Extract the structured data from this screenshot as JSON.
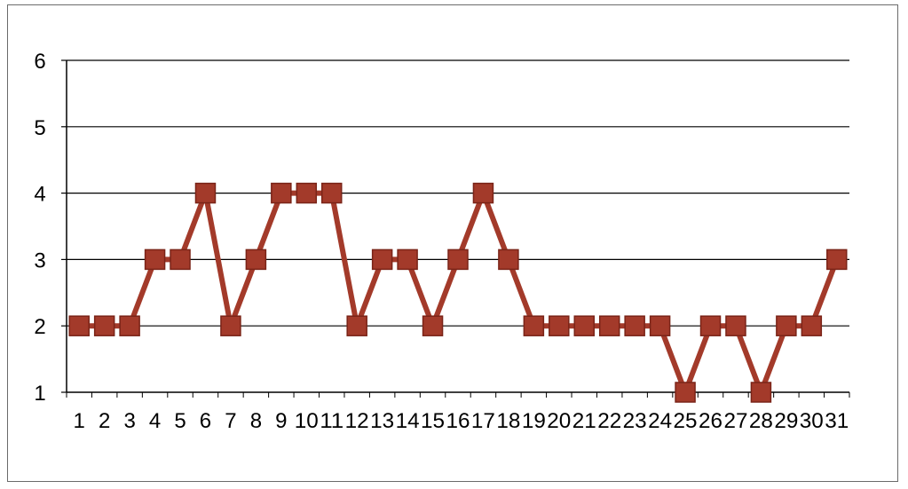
{
  "chart_data": {
    "type": "line",
    "title": "",
    "xlabel": "",
    "ylabel": "",
    "categories": [
      "1",
      "2",
      "3",
      "4",
      "5",
      "6",
      "7",
      "8",
      "9",
      "10",
      "11",
      "12",
      "13",
      "14",
      "15",
      "16",
      "17",
      "18",
      "19",
      "20",
      "21",
      "22",
      "23",
      "24",
      "25",
      "26",
      "27",
      "28",
      "29",
      "30",
      "31"
    ],
    "series": [
      {
        "values": [
          2,
          2,
          2,
          3,
          3,
          4,
          2,
          3,
          4,
          4,
          4,
          2,
          3,
          3,
          2,
          3,
          4,
          3,
          2,
          2,
          2,
          2,
          2,
          2,
          1,
          2,
          2,
          1,
          2,
          2,
          3
        ]
      }
    ],
    "ylim": [
      1,
      6
    ],
    "yticks": [
      1,
      2,
      3,
      4,
      5,
      6
    ],
    "grid": "horizontal",
    "legend": "none",
    "colors": {
      "line": "#a33a2a",
      "marker": "#a33a2a",
      "marker_edge": "#7a2418",
      "grid": "#000000",
      "axis": "#000000"
    }
  }
}
